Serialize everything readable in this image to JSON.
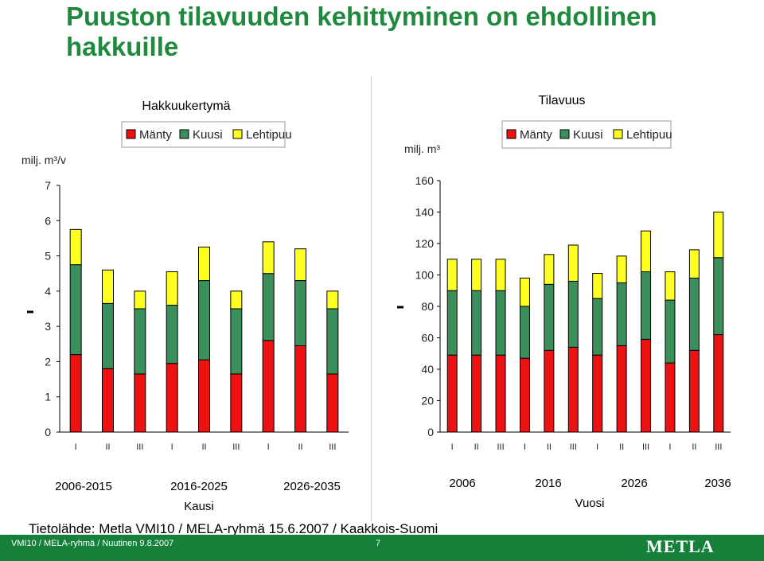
{
  "title": "Puuston tilavuuden kehittyminen on ehdollinen hakkuille",
  "source": "Tietolähde: Metla VMI10 / MELA-ryhmä 15.6.2007 / Kaakkois-Suomi",
  "footer": {
    "left": "VMI10 / MELA-ryhmä / Nuutinen  9.8.2007",
    "page": "7",
    "logo": "METLA"
  },
  "colors": {
    "Mänty": "#ee1111",
    "Kuusi": "#3a8f5a",
    "Lehtipuu": "#ffff22"
  },
  "chart_data": [
    {
      "type": "bar",
      "stacked": true,
      "title": "Hakkuukertymä",
      "ylabel": "milj. m³/v",
      "xlabel": "Kausi",
      "ylim": [
        0,
        7
      ],
      "yticks": [
        0,
        1,
        2,
        3,
        4,
        5,
        6,
        7
      ],
      "legend_position": "top",
      "categories": [
        "I",
        "II",
        "III",
        "I",
        "II",
        "III",
        "I",
        "II",
        "III"
      ],
      "groups": [
        "2006-2015",
        "2016-2025",
        "2026-2035"
      ],
      "series": [
        {
          "name": "Mänty",
          "values": [
            2.2,
            1.8,
            1.65,
            1.95,
            2.05,
            1.65,
            2.6,
            2.45,
            1.65
          ]
        },
        {
          "name": "Kuusi",
          "values": [
            2.55,
            1.85,
            1.85,
            1.65,
            2.25,
            1.85,
            1.9,
            1.85,
            1.85
          ]
        },
        {
          "name": "Lehtipuu",
          "values": [
            1.0,
            0.95,
            0.5,
            0.95,
            0.95,
            0.5,
            0.9,
            0.9,
            0.5
          ]
        }
      ]
    },
    {
      "type": "bar",
      "stacked": true,
      "title": "Tilavuus",
      "ylabel": "milj. m³",
      "xlabel": "Vuosi",
      "ylim": [
        0,
        160
      ],
      "yticks": [
        0,
        20,
        40,
        60,
        80,
        100,
        120,
        140,
        160
      ],
      "legend_position": "top",
      "categories": [
        "I",
        "II",
        "III",
        "I",
        "II",
        "III",
        "I",
        "II",
        "III",
        "I",
        "II",
        "III"
      ],
      "groups": [
        "2006",
        "2016",
        "2026",
        "2036"
      ],
      "series": [
        {
          "name": "Mänty",
          "values": [
            49,
            49,
            49,
            47,
            52,
            54,
            49,
            55,
            59,
            44,
            52,
            62
          ]
        },
        {
          "name": "Kuusi",
          "values": [
            41,
            41,
            41,
            33,
            42,
            42,
            36,
            40,
            43,
            40,
            46,
            49
          ]
        },
        {
          "name": "Lehtipuu",
          "values": [
            20,
            20,
            20,
            18,
            19,
            23,
            16,
            17,
            26,
            18,
            18,
            29
          ]
        }
      ]
    }
  ]
}
